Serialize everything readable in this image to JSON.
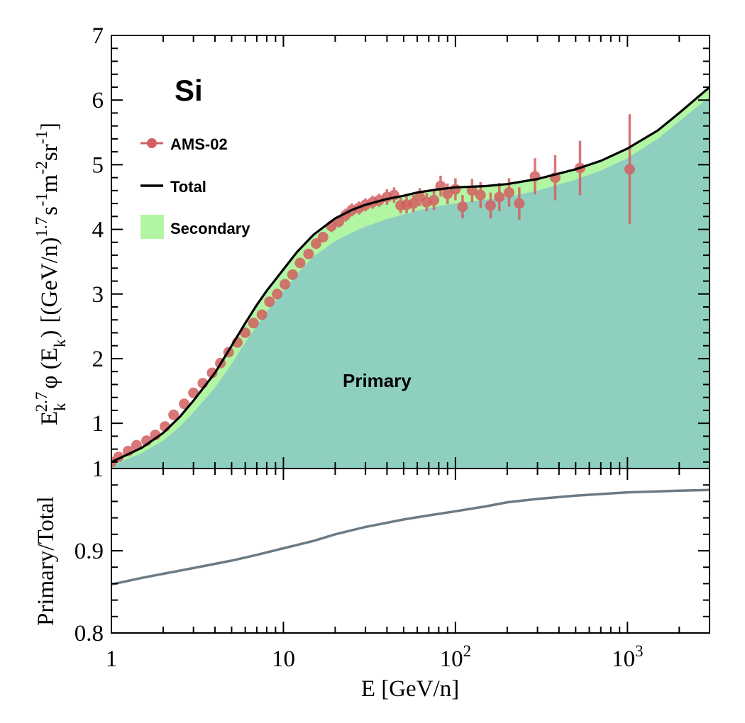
{
  "colors": {
    "primary_fill": "#8fcfc0",
    "secondary_fill": "#b2f5a3",
    "total_line": "#000000",
    "ams_marker": "#d35f61",
    "ratio_line": "#6b7b86"
  },
  "chart_data": [
    {
      "type": "line",
      "panel": "top",
      "title": "Si",
      "xlabel": "",
      "ylabel": "E_k^{2.7} φ (E_k) [(GeV/n)^{1.7} s^{-1} m^{-2} sr^{-1}]",
      "ylabel_parts": {
        "e": "E",
        "k": "k",
        "exp27": "2.7",
        "phi": "φ (E",
        "phi_close": ")",
        "units": "[(GeV/n)",
        "exp17": "1.7",
        "s": "s",
        "sexp": "-1",
        "m": "m",
        "mexp": "-2",
        "sr": "sr",
        "srexp": "-1",
        "close": "]"
      },
      "xscale": "log",
      "xlim": [
        1,
        3000
      ],
      "ylim": [
        0.3,
        7
      ],
      "yticks": [
        1,
        2,
        3,
        4,
        5,
        6,
        7
      ],
      "legend": {
        "position": "top-left",
        "entries": [
          "AMS-02",
          "Total",
          "Secondary"
        ]
      },
      "annotation": "Primary",
      "total": {
        "x": [
          1,
          1.2,
          1.5,
          2,
          2.5,
          3,
          4,
          5,
          6,
          7,
          8,
          10,
          12,
          15,
          20,
          25,
          30,
          40,
          50,
          60,
          80,
          100,
          150,
          200,
          300,
          500,
          700,
          1000,
          1500,
          2000,
          3000
        ],
        "y": [
          0.4,
          0.5,
          0.62,
          0.85,
          1.1,
          1.35,
          1.78,
          2.2,
          2.55,
          2.83,
          3.05,
          3.38,
          3.65,
          3.92,
          4.17,
          4.3,
          4.38,
          4.47,
          4.52,
          4.57,
          4.62,
          4.65,
          4.67,
          4.7,
          4.78,
          4.93,
          5.06,
          5.25,
          5.53,
          5.8,
          6.2
        ]
      },
      "primary": {
        "x": [
          1,
          1.2,
          1.5,
          2,
          2.5,
          3,
          4,
          5,
          6,
          7,
          8,
          10,
          12,
          15,
          20,
          25,
          30,
          40,
          50,
          60,
          80,
          100,
          150,
          200,
          300,
          500,
          700,
          1000,
          1500,
          2000,
          3000
        ],
        "y": [
          0.34,
          0.43,
          0.54,
          0.73,
          0.95,
          1.17,
          1.55,
          1.92,
          2.25,
          2.51,
          2.73,
          3.05,
          3.31,
          3.58,
          3.82,
          3.95,
          4.04,
          4.16,
          4.23,
          4.29,
          4.36,
          4.4,
          4.46,
          4.5,
          4.6,
          4.77,
          4.91,
          5.1,
          5.4,
          5.67,
          6.05
        ]
      },
      "series": [
        {
          "name": "AMS-02",
          "x": [
            1.0,
            1.1,
            1.25,
            1.4,
            1.6,
            1.8,
            2.05,
            2.3,
            2.65,
            3.0,
            3.4,
            3.85,
            4.3,
            4.8,
            5.4,
            6.0,
            6.7,
            7.5,
            8.3,
            9.2,
            10.2,
            11.3,
            12.5,
            14,
            15.5,
            17,
            19,
            21,
            23,
            25,
            27.5,
            30,
            33,
            36,
            40,
            44,
            48,
            52,
            57,
            62,
            68,
            75,
            82,
            90,
            100,
            110,
            125,
            140,
            160,
            180,
            205,
            235,
            290,
            380,
            530,
            1030
          ],
          "y": [
            0.4,
            0.48,
            0.57,
            0.66,
            0.73,
            0.82,
            0.95,
            1.13,
            1.3,
            1.47,
            1.62,
            1.78,
            1.93,
            2.1,
            2.25,
            2.4,
            2.55,
            2.68,
            2.88,
            3.0,
            3.15,
            3.3,
            3.48,
            3.62,
            3.78,
            3.88,
            4.05,
            4.12,
            4.22,
            4.3,
            4.33,
            4.38,
            4.42,
            4.45,
            4.5,
            4.53,
            4.37,
            4.38,
            4.4,
            4.5,
            4.42,
            4.45,
            4.67,
            4.55,
            4.62,
            4.35,
            4.6,
            4.53,
            4.37,
            4.5,
            4.57,
            4.4,
            4.82,
            4.8,
            4.95,
            4.93
          ],
          "err": [
            0.02,
            0.02,
            0.02,
            0.02,
            0.02,
            0.03,
            0.03,
            0.03,
            0.03,
            0.04,
            0.04,
            0.04,
            0.04,
            0.05,
            0.05,
            0.05,
            0.05,
            0.06,
            0.06,
            0.06,
            0.06,
            0.07,
            0.07,
            0.07,
            0.08,
            0.08,
            0.09,
            0.09,
            0.1,
            0.1,
            0.1,
            0.1,
            0.1,
            0.1,
            0.12,
            0.12,
            0.12,
            0.13,
            0.13,
            0.14,
            0.14,
            0.15,
            0.16,
            0.16,
            0.17,
            0.18,
            0.18,
            0.2,
            0.2,
            0.22,
            0.22,
            0.25,
            0.28,
            0.35,
            0.42,
            0.85
          ]
        }
      ]
    },
    {
      "type": "line",
      "panel": "bottom",
      "xlabel": "E [GeV/n]",
      "ylabel": "Primary/Total",
      "xscale": "log",
      "xlim": [
        1,
        3000
      ],
      "ylim": [
        0.8,
        1.0
      ],
      "yticks": [
        0.8,
        0.9,
        1
      ],
      "ytick_labels": [
        "0.8",
        "0.9",
        "1"
      ],
      "xticks": [
        1,
        10,
        100,
        1000
      ],
      "xtick_labels": [
        {
          "base": "1",
          "exp": ""
        },
        {
          "base": "10",
          "exp": ""
        },
        {
          "base": "10",
          "exp": "2"
        },
        {
          "base": "10",
          "exp": "3"
        }
      ],
      "series": [
        {
          "name": "Primary/Total",
          "x": [
            1,
            1.5,
            2,
            3,
            5,
            7,
            10,
            15,
            20,
            30,
            50,
            70,
            100,
            150,
            200,
            300,
            500,
            700,
            1000,
            2000,
            3000
          ],
          "y": [
            0.859,
            0.867,
            0.872,
            0.879,
            0.888,
            0.895,
            0.903,
            0.912,
            0.92,
            0.929,
            0.938,
            0.943,
            0.948,
            0.954,
            0.959,
            0.963,
            0.967,
            0.969,
            0.971,
            0.973,
            0.974
          ]
        }
      ]
    }
  ]
}
